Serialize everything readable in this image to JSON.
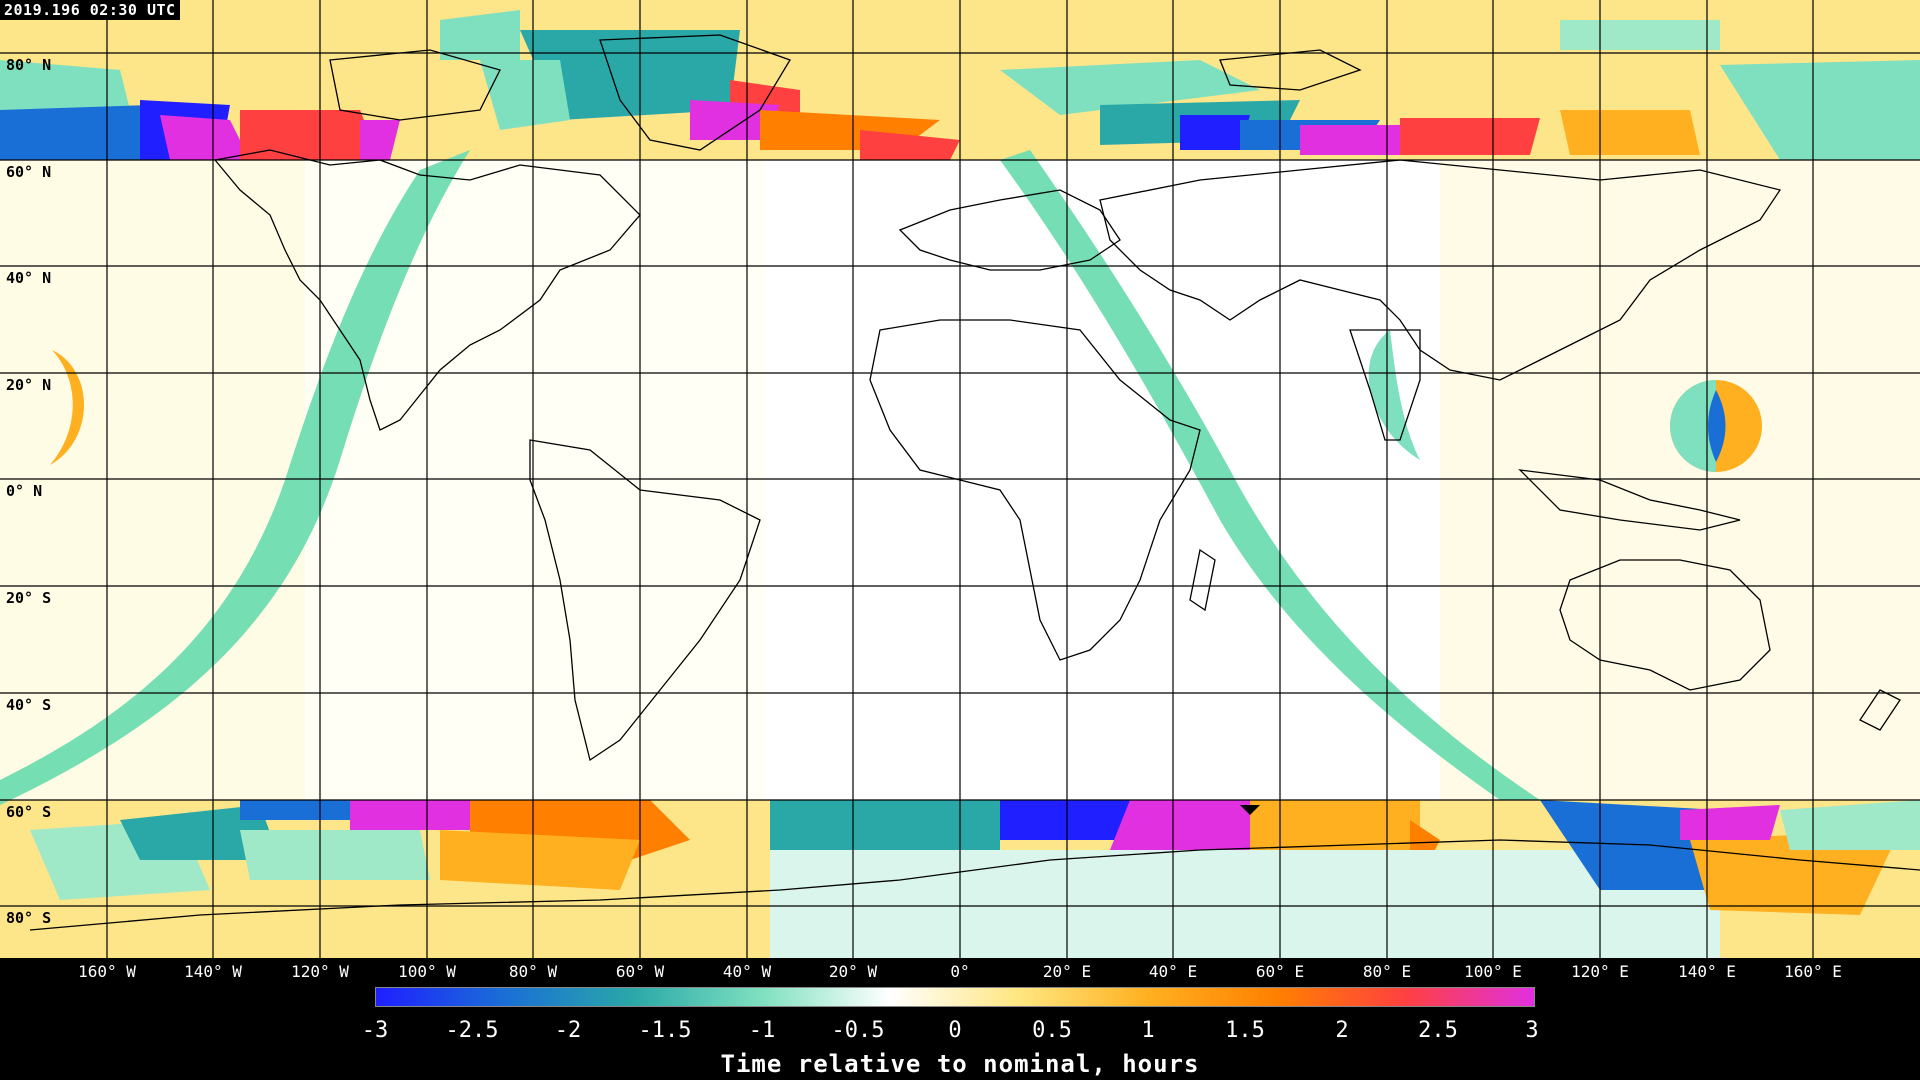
{
  "header": {
    "timestamp": "2019.196 02:30 UTC"
  },
  "map": {
    "latitude_labels": [
      "80° N",
      "60° N",
      "40° N",
      "20° N",
      "0° N",
      "20° S",
      "40° S",
      "60° S",
      "80° S"
    ],
    "longitude_labels": [
      "160° W",
      "140° W",
      "120° W",
      "100° W",
      "80° W",
      "60° W",
      "40° W",
      "20° W",
      "0°",
      "20° E",
      "40° E",
      "60° E",
      "80° E",
      "100° E",
      "120° E",
      "140° E",
      "160° E"
    ],
    "colors": {
      "ocean_background": "#fffbe6",
      "gridline": "#000000",
      "coastline": "#000000",
      "swath_band": "#6fdcb0"
    }
  },
  "colorbar": {
    "title": "Time relative to nominal, hours",
    "ticks": [
      "-3",
      "-2.5",
      "-2",
      "-1.5",
      "-1",
      "-0.5",
      "0",
      "0.5",
      "1",
      "1.5",
      "2",
      "2.5",
      "3"
    ],
    "range": [
      -3,
      3
    ],
    "stops": [
      "#1f1fff",
      "#1a6fd6",
      "#2aa8a8",
      "#7fe0c0",
      "#ffffff",
      "#ffe680",
      "#ffb020",
      "#ff8000",
      "#ff4040",
      "#e030e0"
    ]
  }
}
